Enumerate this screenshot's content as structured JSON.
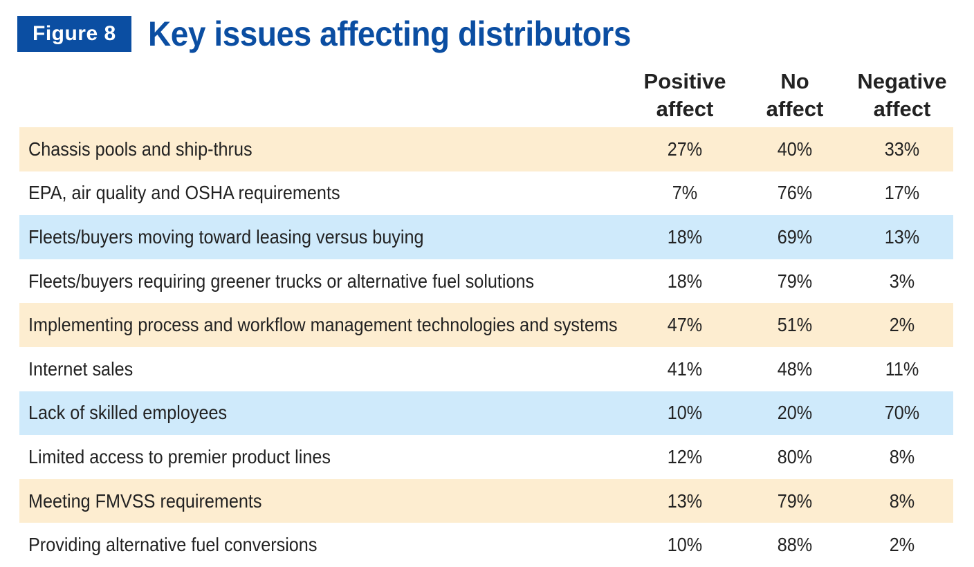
{
  "figure_label": "Figure 8",
  "colors": {
    "accent": "#0b4ea2",
    "row_peach": "#fdedd0",
    "row_blue": "#cfeafb",
    "row_white": "#ffffff"
  },
  "chart_data": {
    "type": "table",
    "title": "Key issues affecting distributors",
    "columns": [
      {
        "line1": "Positive",
        "line2": "affect"
      },
      {
        "line1": "No",
        "line2": "affect"
      },
      {
        "line1": "Negative",
        "line2": "affect"
      }
    ],
    "rows": [
      {
        "label": "Chassis pools and ship-thrus",
        "values": [
          "27%",
          "40%",
          "33%"
        ],
        "shade": "peach"
      },
      {
        "label": "EPA, air quality and OSHA requirements",
        "values": [
          "7%",
          "76%",
          "17%"
        ],
        "shade": "white"
      },
      {
        "label": "Fleets/buyers moving toward leasing versus buying",
        "values": [
          "18%",
          "69%",
          "13%"
        ],
        "shade": "blue"
      },
      {
        "label": "Fleets/buyers requiring greener trucks or alternative fuel solutions",
        "values": [
          "18%",
          "79%",
          "3%"
        ],
        "shade": "white"
      },
      {
        "label": "Implementing process and workflow management technologies and systems",
        "values": [
          "47%",
          "51%",
          "2%"
        ],
        "shade": "peach"
      },
      {
        "label": "Internet sales",
        "values": [
          "41%",
          "48%",
          "11%"
        ],
        "shade": "white"
      },
      {
        "label": "Lack of skilled employees",
        "values": [
          "10%",
          "20%",
          "70%"
        ],
        "shade": "blue"
      },
      {
        "label": "Limited access to premier product lines",
        "values": [
          "12%",
          "80%",
          "8%"
        ],
        "shade": "white"
      },
      {
        "label": "Meeting FMVSS requirements",
        "values": [
          "13%",
          "79%",
          "8%"
        ],
        "shade": "peach"
      },
      {
        "label": "Providing alternative fuel conversions",
        "values": [
          "10%",
          "88%",
          "2%"
        ],
        "shade": "white"
      }
    ]
  }
}
